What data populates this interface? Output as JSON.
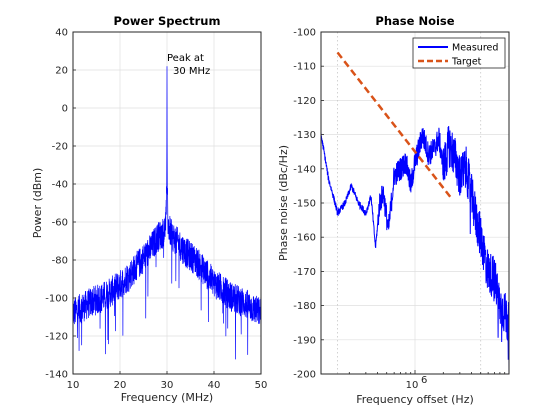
{
  "chart_data": [
    {
      "type": "line",
      "title": "Power Spectrum",
      "xlabel": "Frequency (MHz)",
      "ylabel": "Power (dBm)",
      "xlim": [
        10,
        50
      ],
      "ylim": [
        -140,
        40
      ],
      "xticks": [
        10,
        20,
        30,
        40,
        50
      ],
      "xtick_labels": [
        "10",
        "20",
        "30",
        "40",
        "50"
      ],
      "yticks": [
        -140,
        -120,
        -100,
        -80,
        -60,
        -40,
        -20,
        0,
        20,
        40
      ],
      "ytick_labels": [
        "-140",
        "-120",
        "-100",
        "-80",
        "-60",
        "-40",
        "-20",
        "0",
        "20",
        "40"
      ],
      "grid": true,
      "color": "#0000ff",
      "annotation": {
        "text_line1": "Peak at",
        "text_line2": "30 MHz",
        "x": 30,
        "y": 22
      },
      "series": [
        {
          "color": "#0000ff",
          "x": [
            10,
            12,
            14,
            16,
            18,
            20,
            22,
            24,
            26,
            28,
            29,
            29.5,
            29.8,
            29.95,
            30,
            30.05,
            30.2,
            30.5,
            31,
            32,
            34,
            36,
            38,
            40,
            42,
            44,
            46,
            48,
            50
          ],
          "y": [
            -108,
            -105,
            -102,
            -100,
            -97,
            -93,
            -88,
            -82,
            -76,
            -68,
            -66,
            -64,
            -58,
            -40,
            22,
            -40,
            -60,
            -64,
            -67,
            -70,
            -76,
            -80,
            -86,
            -92,
            -96,
            -100,
            -102,
            -105,
            -108
          ]
        }
      ]
    },
    {
      "type": "line",
      "title": "Phase Noise",
      "xlabel": "Frequency offset (Hz)",
      "ylabel": "Phase noise (dBc/Hz)",
      "xscale": "log",
      "xlim": [
        100000,
        10000000
      ],
      "ylim": [
        -200,
        -100
      ],
      "xticks": [
        1000000
      ],
      "xtick_labels": [
        "10"
      ],
      "xtick_exponent": "6",
      "yticks": [
        -200,
        -190,
        -180,
        -170,
        -160,
        -150,
        -140,
        -130,
        -120,
        -110,
        -100
      ],
      "ytick_labels": [
        "-200",
        "-190",
        "-180",
        "-170",
        "-160",
        "-150",
        "-140",
        "-130",
        "-120",
        "-110",
        "-100"
      ],
      "vlines_x": [
        150000,
        5000000
      ],
      "grid": true,
      "legend": {
        "position": "top-right",
        "entries": [
          "Measured",
          "Target"
        ]
      },
      "series": [
        {
          "name": "Measured",
          "color": "#0000ff",
          "style": "solid",
          "x": [
            100000,
            120000,
            150000,
            180000,
            210000,
            250000,
            300000,
            340000,
            380000,
            420000,
            460000,
            520000,
            600000,
            700000,
            800000,
            900000,
            1000000,
            1200000,
            1400000,
            1600000,
            1800000,
            2000000,
            2300000,
            2600000,
            3000000,
            3500000,
            4000000,
            4500000,
            5000000,
            5500000,
            6000000,
            7000000,
            8000000,
            9000000,
            10000000
          ],
          "y": [
            -130,
            -143,
            -153,
            -150,
            -145,
            -150,
            -153,
            -148,
            -163,
            -150,
            -147,
            -158,
            -142,
            -140,
            -138,
            -145,
            -138,
            -130,
            -136,
            -134,
            -131,
            -140,
            -133,
            -136,
            -142,
            -140,
            -148,
            -155,
            -160,
            -165,
            -170,
            -172,
            -180,
            -182,
            -186
          ]
        },
        {
          "name": "Target",
          "color": "#d95319",
          "style": "dashed",
          "x": [
            150000,
            2500000
          ],
          "y": [
            -106,
            -149
          ]
        }
      ]
    }
  ]
}
